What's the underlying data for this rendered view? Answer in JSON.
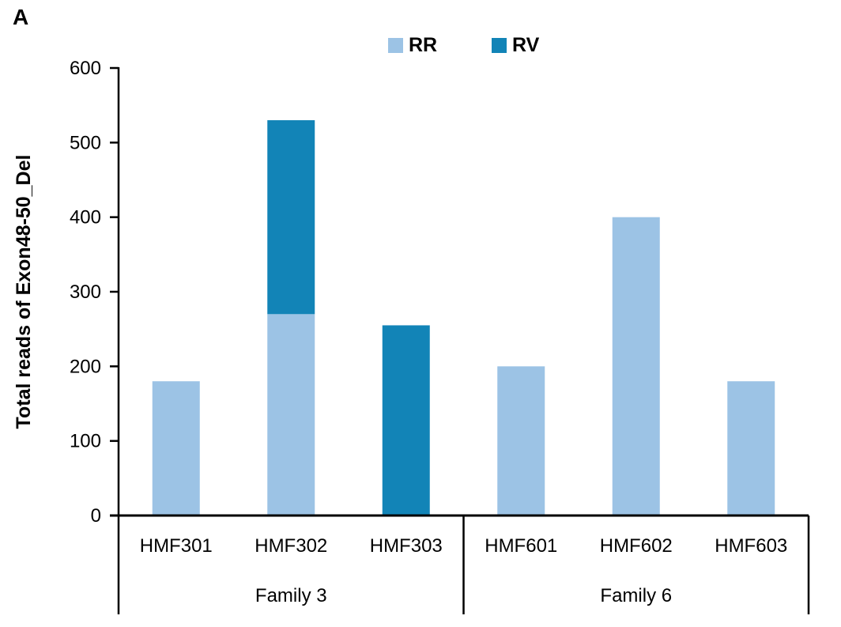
{
  "panel_label": "A",
  "chart_data": {
    "type": "bar",
    "stacked": true,
    "title": "",
    "ylabel": "Total reads of Exon48-50_Del",
    "ylim": [
      0,
      600
    ],
    "yticks": [
      0,
      100,
      200,
      300,
      400,
      500,
      600
    ],
    "grid": false,
    "legend_position": "top",
    "categories": [
      "HMF301",
      "HMF302",
      "HMF303",
      "HMF601",
      "HMF602",
      "HMF603"
    ],
    "groups": [
      {
        "label": "Family 3",
        "span": [
          0,
          2
        ]
      },
      {
        "label": "Family 6",
        "span": [
          3,
          5
        ]
      }
    ],
    "series": [
      {
        "name": "RR",
        "color": "#9CC3E5",
        "values": [
          180,
          270,
          0,
          200,
          400,
          180
        ]
      },
      {
        "name": "RV",
        "color": "#1284B7",
        "values": [
          0,
          260,
          255,
          0,
          0,
          0
        ]
      }
    ],
    "totals": [
      180,
      530,
      255,
      200,
      400,
      180
    ],
    "axis_color": "#000000",
    "text_color": "#000000",
    "background": "#ffffff"
  }
}
